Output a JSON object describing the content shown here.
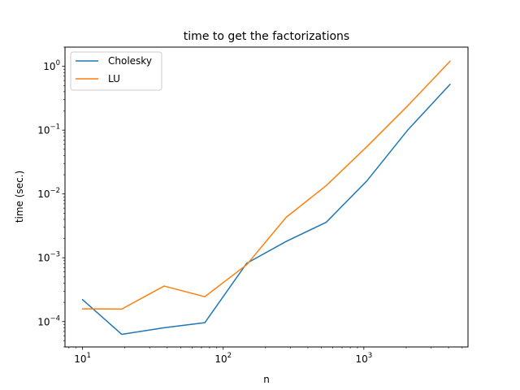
{
  "chart_data": {
    "type": "line",
    "title": "time to get the factorizations",
    "xlabel": "n",
    "ylabel": "time (sec.)",
    "xscale": "log",
    "yscale": "log",
    "xlim": [
      7.5,
      5500
    ],
    "ylim": [
      4e-05,
      2.0
    ],
    "grid": false,
    "legend": "top-left",
    "x_ticks": [
      {
        "base": "10",
        "exp": "1",
        "value": 10
      },
      {
        "base": "10",
        "exp": "2",
        "value": 100
      },
      {
        "base": "10",
        "exp": "3",
        "value": 1000
      }
    ],
    "y_ticks": [
      {
        "base": "10",
        "exp": "−4",
        "value": 0.0001
      },
      {
        "base": "10",
        "exp": "−3",
        "value": 0.001
      },
      {
        "base": "10",
        "exp": "−2",
        "value": 0.01
      },
      {
        "base": "10",
        "exp": "−1",
        "value": 0.1
      },
      {
        "base": "10",
        "exp": "0",
        "value": 1
      }
    ],
    "x": [
      10,
      19,
      38,
      74,
      147,
      280,
      540,
      1050,
      2048,
      4096
    ],
    "series": [
      {
        "name": "Cholesky",
        "color": "#1f77b4",
        "values": [
          0.00022,
          6.3e-05,
          8e-05,
          9.6e-05,
          0.00082,
          0.0018,
          0.0036,
          0.016,
          0.1,
          0.52
        ]
      },
      {
        "name": "LU",
        "color": "#ff7f0e",
        "values": [
          0.000158,
          0.000157,
          0.00036,
          0.000245,
          0.00078,
          0.0043,
          0.0135,
          0.055,
          0.24,
          1.2
        ]
      }
    ]
  }
}
